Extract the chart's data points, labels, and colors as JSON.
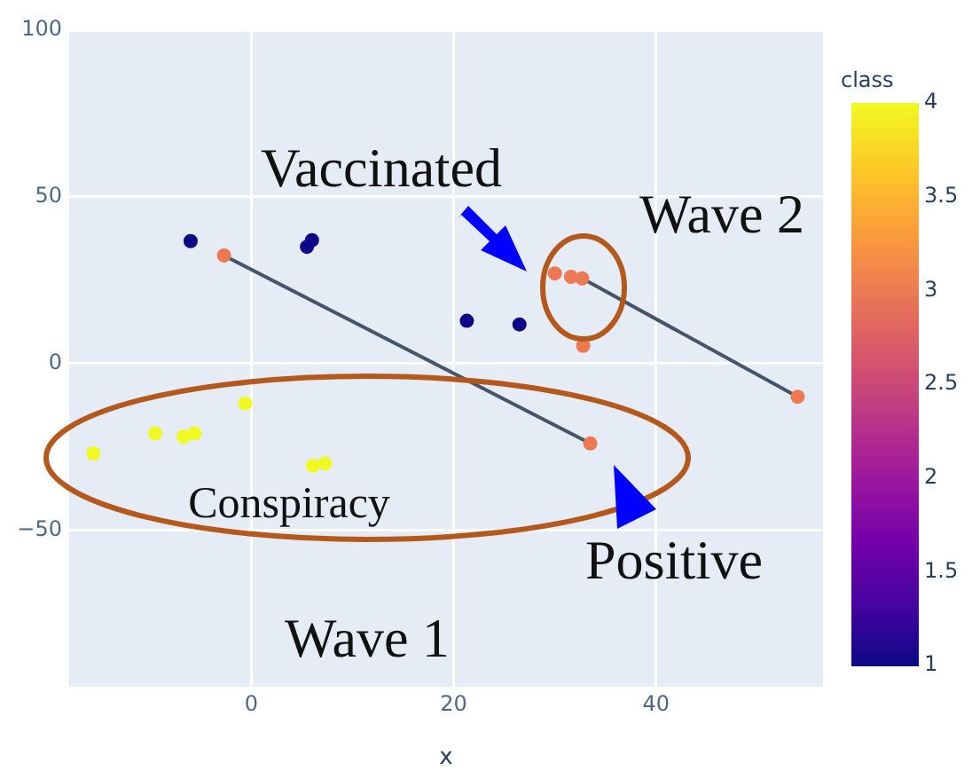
{
  "chart_data": {
    "type": "scatter",
    "xlabel": "x",
    "clabel": "class",
    "clim": [
      1,
      4
    ],
    "cticks": [
      1,
      1.5,
      2,
      2.5,
      3,
      3.5,
      4
    ],
    "xlim": [
      -18,
      56.5
    ],
    "ylim": [
      -97,
      100
    ],
    "xticks": [
      0,
      20,
      40
    ],
    "yticks": [
      -50,
      0,
      50,
      100
    ],
    "grid": true,
    "legend": false,
    "annotations": [
      "Vaccinated",
      "Wave 2",
      "Conspiracy",
      "Positive",
      "Wave 1"
    ],
    "series": [
      {
        "marker": "circle",
        "x": [
          -6,
          5.5,
          6,
          21.3,
          26.5,
          -2.7,
          30,
          31.6,
          32.7,
          32.8,
          33.5,
          54,
          -15.6,
          -9.5,
          -6.7,
          -5.6,
          -0.6,
          6.1,
          7.3
        ],
        "values": [
          36.7,
          35,
          37,
          12.8,
          11.7,
          32.4,
          27,
          26,
          25.5,
          5.3,
          -24,
          -10,
          -27,
          -21,
          -22,
          -21,
          -12,
          -30.7,
          -30
        ],
        "colors": [
          "#0d0887",
          "#0d0887",
          "#0d0887",
          "#0d0887",
          "#0d0887",
          "#ed7953",
          "#ed7953",
          "#ed7953",
          "#ed7953",
          "#ed7953",
          "#ed7953",
          "#ed7953",
          "#f0f921",
          "#f0f921",
          "#f0f921",
          "#f0f921",
          "#f0f921",
          "#f0f921",
          "#f0f921"
        ]
      },
      {
        "type": "line",
        "marker": "none",
        "color": "#44546a",
        "x": [
          -2.7,
          33.5
        ],
        "values": [
          32.4,
          -24
        ]
      },
      {
        "type": "line",
        "marker": "none",
        "color": "#44546a",
        "x": [
          32.7,
          54
        ],
        "values": [
          25.5,
          -10
        ]
      }
    ]
  }
}
